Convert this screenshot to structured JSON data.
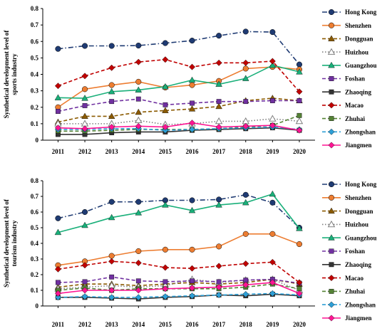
{
  "chart_data": [
    {
      "type": "line",
      "title": "",
      "ylabel": "Synthetical development level of sports industry",
      "xlabel": "",
      "x": [
        "2011",
        "2012",
        "2013",
        "2014",
        "2015",
        "2016",
        "2017",
        "2018",
        "2019",
        "2020"
      ],
      "ylim": [
        0,
        0.8
      ],
      "yticks": [
        "0",
        "0.1",
        "0.2",
        "0.3",
        "0.4",
        "0.5",
        "0.6",
        "0.7",
        "0.8"
      ],
      "legend_position": "right",
      "series": [
        {
          "name": "Hong Kong",
          "color": "#1f3b73",
          "dash": "dashdot",
          "marker": "circle",
          "values": [
            0.555,
            0.573,
            0.573,
            0.575,
            0.59,
            0.605,
            0.635,
            0.66,
            0.657,
            0.46
          ]
        },
        {
          "name": "Shenzhen",
          "color": "#ed7d31",
          "dash": "solid",
          "marker": "circle",
          "values": [
            0.2,
            0.31,
            0.335,
            0.355,
            0.32,
            0.335,
            0.36,
            0.435,
            0.445,
            0.43
          ]
        },
        {
          "name": "Dongguan",
          "color": "#8b5a00",
          "dash": "dashed",
          "marker": "triangle",
          "values": [
            0.11,
            0.145,
            0.145,
            0.17,
            0.18,
            0.19,
            0.205,
            0.24,
            0.255,
            0.24
          ]
        },
        {
          "name": "Huizhou",
          "color": "#808080",
          "dash": "dotted",
          "marker": "triangle-open",
          "values": [
            0.1,
            0.1,
            0.1,
            0.12,
            0.095,
            0.1,
            0.115,
            0.115,
            0.13,
            0.115
          ]
        },
        {
          "name": "Guangzhou",
          "color": "#1ab07a",
          "dash": "solid",
          "marker": "triangle",
          "values": [
            0.258,
            0.255,
            0.295,
            0.305,
            0.325,
            0.365,
            0.34,
            0.375,
            0.455,
            0.415
          ]
        },
        {
          "name": "Foshan",
          "color": "#7030a0",
          "dash": "dashed",
          "marker": "square",
          "values": [
            0.175,
            0.21,
            0.235,
            0.25,
            0.215,
            0.225,
            0.235,
            0.235,
            0.24,
            0.24
          ]
        },
        {
          "name": "Zhaoqing",
          "color": "#333333",
          "dash": "solid",
          "marker": "square",
          "values": [
            0.035,
            0.035,
            0.045,
            0.05,
            0.05,
            0.06,
            0.065,
            0.07,
            0.075,
            0.06
          ]
        },
        {
          "name": "Macao",
          "color": "#c00000",
          "dash": "dashed",
          "marker": "diamond",
          "values": [
            0.33,
            0.39,
            0.44,
            0.475,
            0.49,
            0.445,
            0.47,
            0.47,
            0.48,
            0.295
          ]
        },
        {
          "name": "Zhuhai",
          "color": "#548235",
          "dash": "dashed",
          "marker": "square",
          "values": [
            0.055,
            0.055,
            0.06,
            0.065,
            0.065,
            0.065,
            0.07,
            0.08,
            0.09,
            0.15
          ]
        },
        {
          "name": "Zhongshan",
          "color": "#2e9fd6",
          "dash": "dashed",
          "marker": "diamond",
          "values": [
            0.065,
            0.065,
            0.07,
            0.07,
            0.06,
            0.065,
            0.07,
            0.075,
            0.08,
            0.065
          ]
        },
        {
          "name": "Jiangmen",
          "color": "#ff1493",
          "dash": "solid",
          "marker": "diamond",
          "values": [
            0.075,
            0.07,
            0.08,
            0.085,
            0.08,
            0.105,
            0.08,
            0.085,
            0.09,
            0.06
          ]
        }
      ]
    },
    {
      "type": "line",
      "title": "",
      "ylabel": "Synthetical development level of tourism industry",
      "xlabel": "",
      "x": [
        "2011",
        "2012",
        "2013",
        "2014",
        "2015",
        "2016",
        "2017",
        "2018",
        "2019",
        "2020"
      ],
      "ylim": [
        0,
        0.8
      ],
      "yticks": [
        "0",
        "0.1",
        "0.2",
        "0.3",
        "0.4",
        "0.5",
        "0.6",
        "0.7",
        "0.8"
      ],
      "legend_position": "right",
      "series": [
        {
          "name": "Hong Kong",
          "color": "#1f3b73",
          "dash": "dashdot",
          "marker": "circle",
          "values": [
            0.56,
            0.6,
            0.665,
            0.665,
            0.675,
            0.675,
            0.68,
            0.71,
            0.66,
            0.5
          ]
        },
        {
          "name": "Shenzhen",
          "color": "#ed7d31",
          "dash": "solid",
          "marker": "circle",
          "values": [
            0.26,
            0.285,
            0.32,
            0.35,
            0.36,
            0.36,
            0.38,
            0.46,
            0.46,
            0.395
          ]
        },
        {
          "name": "Dongguan",
          "color": "#8b5a00",
          "dash": "dashed",
          "marker": "triangle",
          "values": [
            0.12,
            0.14,
            0.14,
            0.13,
            0.14,
            0.15,
            0.14,
            0.15,
            0.17,
            0.14
          ]
        },
        {
          "name": "Huizhou",
          "color": "#808080",
          "dash": "dotted",
          "marker": "triangle-open",
          "values": [
            0.11,
            0.12,
            0.13,
            0.12,
            0.13,
            0.17,
            0.15,
            0.165,
            0.17,
            0.1
          ]
        },
        {
          "name": "Guangzhou",
          "color": "#1ab07a",
          "dash": "solid",
          "marker": "triangle",
          "values": [
            0.47,
            0.515,
            0.565,
            0.595,
            0.645,
            0.61,
            0.645,
            0.66,
            0.715,
            0.495
          ]
        },
        {
          "name": "Foshan",
          "color": "#7030a0",
          "dash": "dashed",
          "marker": "square",
          "values": [
            0.15,
            0.155,
            0.185,
            0.16,
            0.155,
            0.16,
            0.155,
            0.165,
            0.17,
            0.145
          ]
        },
        {
          "name": "Zhaoqing",
          "color": "#333333",
          "dash": "solid",
          "marker": "square",
          "values": [
            0.055,
            0.055,
            0.05,
            0.045,
            0.055,
            0.06,
            0.07,
            0.065,
            0.075,
            0.065
          ]
        },
        {
          "name": "Macao",
          "color": "#c00000",
          "dash": "dashed",
          "marker": "diamond",
          "values": [
            0.235,
            0.26,
            0.285,
            0.275,
            0.245,
            0.24,
            0.255,
            0.27,
            0.28,
            0.15
          ]
        },
        {
          "name": "Zhuhai",
          "color": "#548235",
          "dash": "dashed",
          "marker": "square",
          "values": [
            0.1,
            0.115,
            0.1,
            0.11,
            0.11,
            0.11,
            0.11,
            0.12,
            0.14,
            0.11
          ]
        },
        {
          "name": "Zhongshan",
          "color": "#2e9fd6",
          "dash": "dashed",
          "marker": "diamond",
          "values": [
            0.055,
            0.06,
            0.055,
            0.055,
            0.06,
            0.065,
            0.07,
            0.075,
            0.08,
            0.07
          ]
        },
        {
          "name": "Jiangmen",
          "color": "#ff1493",
          "dash": "solid",
          "marker": "diamond",
          "values": [
            0.08,
            0.1,
            0.1,
            0.1,
            0.11,
            0.115,
            0.12,
            0.135,
            0.15,
            0.08
          ]
        }
      ]
    }
  ]
}
